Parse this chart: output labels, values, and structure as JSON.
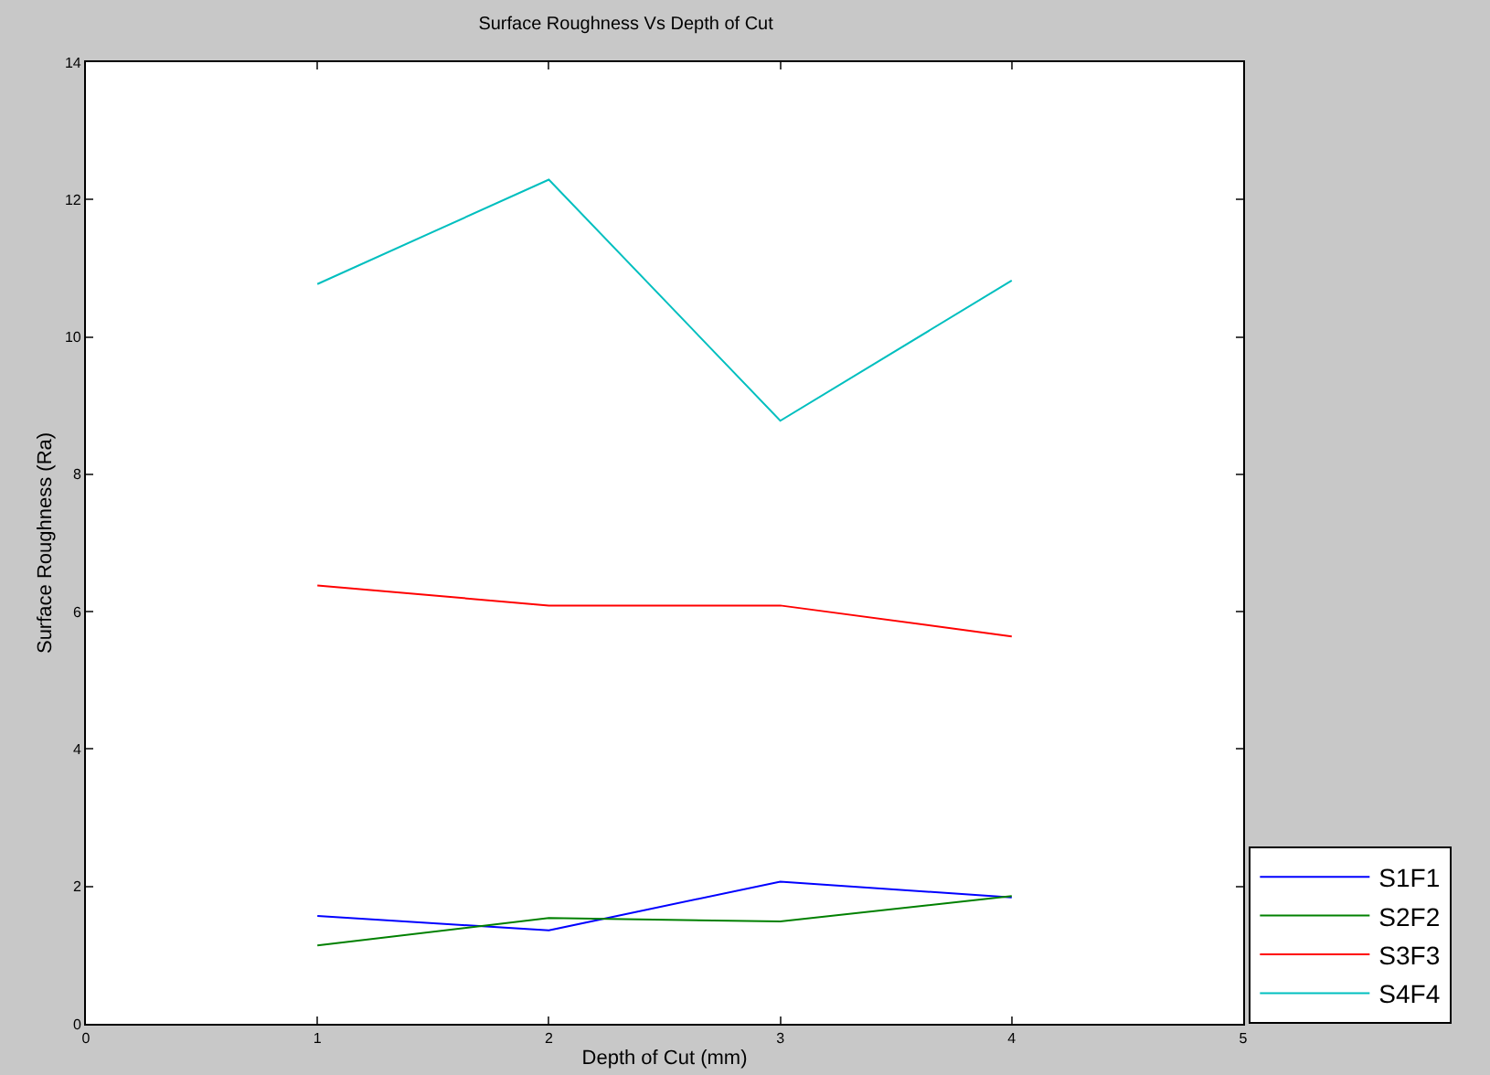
{
  "chart_data": {
    "type": "line",
    "title": "Surface Roughness Vs Depth of Cut",
    "xlabel": "Depth of Cut (mm)",
    "ylabel": "Surface Roughness (Ra)",
    "x": [
      1,
      2,
      3,
      4
    ],
    "series": [
      {
        "name": "S1F1",
        "color": "#0000ff",
        "values": [
          1.57,
          1.36,
          2.07,
          1.84
        ]
      },
      {
        "name": "S2F2",
        "color": "#008000",
        "values": [
          1.14,
          1.54,
          1.49,
          1.86
        ]
      },
      {
        "name": "S3F3",
        "color": "#ff0000",
        "values": [
          6.38,
          6.09,
          6.09,
          5.64
        ]
      },
      {
        "name": "S4F4",
        "color": "#00bfbf",
        "values": [
          10.77,
          12.29,
          8.78,
          10.82
        ]
      }
    ],
    "xlim": [
      0,
      5
    ],
    "xticks": [
      0,
      1,
      2,
      3,
      4,
      5
    ],
    "ylim": [
      0,
      14
    ],
    "yticks": [
      0,
      2,
      4,
      6,
      8,
      10,
      12,
      14
    ],
    "grid": false,
    "legend": "bottom right",
    "marker": "none",
    "line_style": "solid"
  }
}
